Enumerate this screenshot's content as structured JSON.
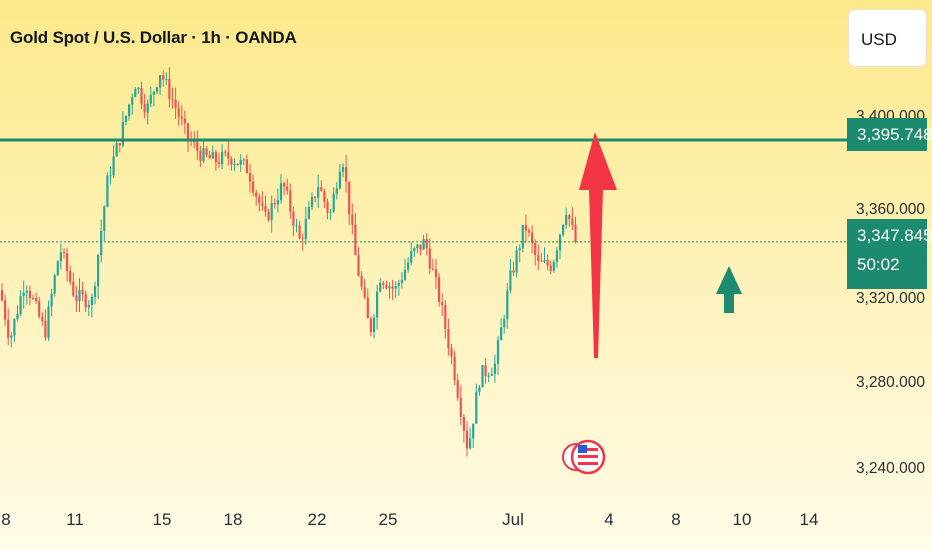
{
  "header": {
    "title": "Gold Spot / U.S. Dollar · 1h · OANDA"
  },
  "currency": {
    "label": "USD"
  },
  "price_axis": {
    "ticks": [
      "3,400.000",
      "3,360.000",
      "3,320.000",
      "3,280.000",
      "3,240.000"
    ],
    "resistance_label": "3,395.748",
    "current_price_label": "3,347.845",
    "countdown_label": "50:02"
  },
  "time_axis": {
    "ticks": [
      "8",
      "11",
      "15",
      "18",
      "22",
      "25",
      "Jul",
      "4",
      "8",
      "10",
      "14"
    ]
  },
  "colors": {
    "up_candle": "#26a69a",
    "down_candle": "#ef5350",
    "resistance_line": "#1c8a6e",
    "red_arrow": "#f23645",
    "green_arrow": "#1c8a6e"
  },
  "chart_data": {
    "type": "candlestick",
    "symbol": "XAUUSD",
    "interval": "1h",
    "ylim": [
      3236,
      3425
    ],
    "resistance_level": 3395.748,
    "current_price": 3347.845,
    "path_points": [
      [
        0,
        3325
      ],
      [
        10,
        3302
      ],
      [
        25,
        3330
      ],
      [
        45,
        3305
      ],
      [
        60,
        3345
      ],
      [
        75,
        3322
      ],
      [
        92,
        3320
      ],
      [
        108,
        3378
      ],
      [
        122,
        3400
      ],
      [
        135,
        3423
      ],
      [
        147,
        3410
      ],
      [
        160,
        3428
      ],
      [
        175,
        3412
      ],
      [
        187,
        3397
      ],
      [
        203,
        3388
      ],
      [
        215,
        3386
      ],
      [
        230,
        3388
      ],
      [
        248,
        3382
      ],
      [
        265,
        3358
      ],
      [
        283,
        3375
      ],
      [
        300,
        3348
      ],
      [
        318,
        3375
      ],
      [
        330,
        3360
      ],
      [
        342,
        3390
      ],
      [
        355,
        3342
      ],
      [
        370,
        3305
      ],
      [
        380,
        3332
      ],
      [
        395,
        3325
      ],
      [
        412,
        3342
      ],
      [
        425,
        3348
      ],
      [
        440,
        3320
      ],
      [
        455,
        3285
      ],
      [
        468,
        3250
      ],
      [
        480,
        3285
      ],
      [
        495,
        3290
      ],
      [
        510,
        3330
      ],
      [
        525,
        3356
      ],
      [
        538,
        3337
      ],
      [
        552,
        3337
      ],
      [
        566,
        3364
      ],
      [
        576,
        3347
      ]
    ],
    "annotations": [
      {
        "type": "up-arrow",
        "color": "red",
        "from": 3300,
        "to": 3395.748
      },
      {
        "type": "up-arrow",
        "color": "green"
      }
    ]
  }
}
